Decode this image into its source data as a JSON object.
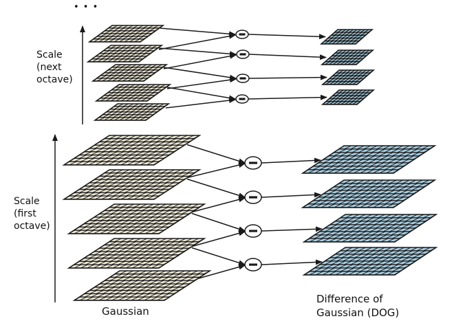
{
  "ellipsis": "• • •",
  "labels": {
    "next_octave": [
      "Scale",
      "(next",
      "octave)"
    ],
    "first_octave": [
      "Scale",
      "(first",
      "octave)"
    ],
    "gaussian": "Gaussian",
    "dog": [
      "Difference of",
      "Gaussian (DOG)"
    ]
  },
  "operator_symbol": "minus",
  "colors": {
    "gaussian_fill": "#f1ecd9",
    "dog_fill": "#a9cfe2",
    "stroke": "#1a1a1a"
  },
  "octaves": [
    {
      "name": "next octave",
      "gaussian_levels": 5,
      "dog_levels": 4
    },
    {
      "name": "first octave",
      "gaussian_levels": 5,
      "dog_levels": 4
    }
  ]
}
